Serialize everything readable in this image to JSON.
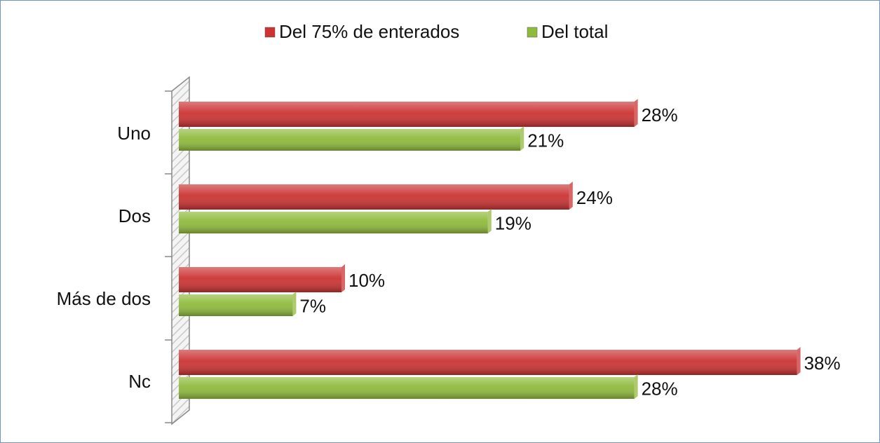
{
  "chart_data": {
    "type": "bar",
    "orientation": "horizontal",
    "categories": [
      "Uno",
      "Dos",
      "Más de dos",
      "Nc"
    ],
    "series": [
      {
        "name": "Del 75% de enterados",
        "color": "#cc3333",
        "values": [
          28,
          24,
          10,
          38
        ],
        "value_labels": [
          "28%",
          "24%",
          "10%",
          "38%"
        ]
      },
      {
        "name": "Del total",
        "color": "#8fba3c",
        "values": [
          21,
          19,
          7,
          28
        ],
        "value_labels": [
          "21%",
          "19%",
          "7%",
          "28%"
        ]
      }
    ],
    "legend": "top"
  }
}
